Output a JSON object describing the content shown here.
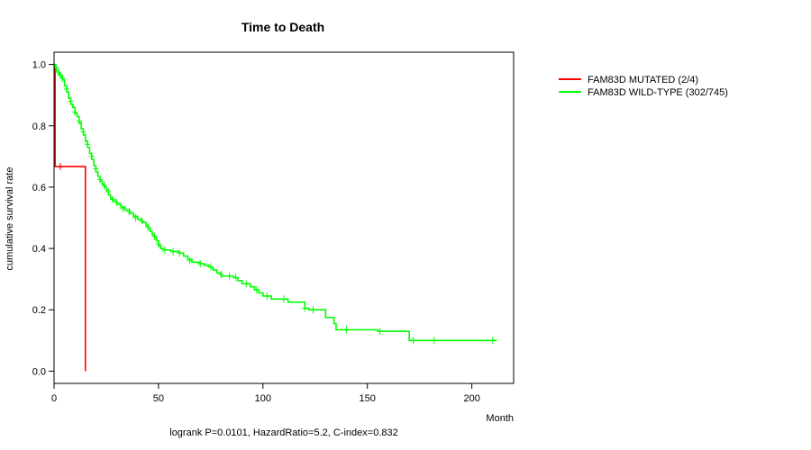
{
  "chart_data": {
    "type": "line",
    "subtype": "kaplan-meier",
    "title": "Time to Death",
    "xlabel": "Month",
    "ylabel": "cumulative survival rate",
    "xlim": [
      0,
      220
    ],
    "ylim": [
      -0.04,
      1.04
    ],
    "xticks": [
      0,
      50,
      100,
      150,
      200
    ],
    "xtick_labels": [
      "0",
      "50",
      "100",
      "150",
      "200"
    ],
    "yticks": [
      0.0,
      0.2,
      0.4,
      0.6,
      0.8,
      1.0
    ],
    "ytick_labels": [
      "0.0",
      "0.2",
      "0.4",
      "0.6",
      "0.8",
      "1.0"
    ],
    "legend_position": "top-right, outside plot",
    "footnote": "logrank P=0.0101, HazardRatio=5.2, C-index=0.832",
    "series": [
      {
        "name": "FAM83D MUTATED (2/4)",
        "color": "#ff0000",
        "steps": [
          [
            0,
            1.0
          ],
          [
            0.5,
            0.667
          ],
          [
            15,
            0.0
          ]
        ],
        "end_x": 15,
        "censored": [
          [
            3,
            0.667
          ]
        ]
      },
      {
        "name": "FAM83D WILD-TYPE (302/745)",
        "color": "#00ff00",
        "steps": [
          [
            0,
            1.0
          ],
          [
            0.5,
            0.99
          ],
          [
            1,
            0.98
          ],
          [
            2,
            0.97
          ],
          [
            3,
            0.96
          ],
          [
            4,
            0.95
          ],
          [
            5,
            0.93
          ],
          [
            6,
            0.91
          ],
          [
            7,
            0.89
          ],
          [
            8,
            0.87
          ],
          [
            9,
            0.86
          ],
          [
            10,
            0.84
          ],
          [
            11,
            0.83
          ],
          [
            12,
            0.81
          ],
          [
            13,
            0.79
          ],
          [
            14,
            0.77
          ],
          [
            15,
            0.75
          ],
          [
            16,
            0.73
          ],
          [
            17,
            0.71
          ],
          [
            18,
            0.69
          ],
          [
            19,
            0.67
          ],
          [
            20,
            0.65
          ],
          [
            21,
            0.635
          ],
          [
            22,
            0.62
          ],
          [
            23,
            0.61
          ],
          [
            24,
            0.6
          ],
          [
            25,
            0.59
          ],
          [
            26,
            0.575
          ],
          [
            27,
            0.565
          ],
          [
            28,
            0.555
          ],
          [
            30,
            0.545
          ],
          [
            32,
            0.535
          ],
          [
            34,
            0.525
          ],
          [
            36,
            0.515
          ],
          [
            38,
            0.505
          ],
          [
            40,
            0.495
          ],
          [
            42,
            0.485
          ],
          [
            44,
            0.475
          ],
          [
            45,
            0.465
          ],
          [
            46,
            0.455
          ],
          [
            47,
            0.445
          ],
          [
            48,
            0.435
          ],
          [
            49,
            0.425
          ],
          [
            50,
            0.41
          ],
          [
            51,
            0.4
          ],
          [
            52,
            0.395
          ],
          [
            56,
            0.39
          ],
          [
            60,
            0.385
          ],
          [
            62,
            0.375
          ],
          [
            64,
            0.365
          ],
          [
            66,
            0.355
          ],
          [
            70,
            0.35
          ],
          [
            72,
            0.345
          ],
          [
            74,
            0.34
          ],
          [
            76,
            0.33
          ],
          [
            78,
            0.32
          ],
          [
            80,
            0.31
          ],
          [
            86,
            0.305
          ],
          [
            88,
            0.295
          ],
          [
            90,
            0.285
          ],
          [
            94,
            0.275
          ],
          [
            96,
            0.265
          ],
          [
            98,
            0.255
          ],
          [
            100,
            0.245
          ],
          [
            104,
            0.235
          ],
          [
            112,
            0.225
          ],
          [
            120,
            0.205
          ],
          [
            122,
            0.2
          ],
          [
            130,
            0.175
          ],
          [
            134,
            0.155
          ],
          [
            135,
            0.135
          ],
          [
            155,
            0.13
          ],
          [
            170,
            0.1
          ]
        ],
        "end_x": 212,
        "censored": [
          [
            1,
            0.99
          ],
          [
            2,
            0.975
          ],
          [
            3,
            0.965
          ],
          [
            4,
            0.955
          ],
          [
            6,
            0.92
          ],
          [
            8,
            0.88
          ],
          [
            10,
            0.845
          ],
          [
            12,
            0.815
          ],
          [
            14,
            0.78
          ],
          [
            16,
            0.74
          ],
          [
            18,
            0.7
          ],
          [
            20,
            0.66
          ],
          [
            22,
            0.625
          ],
          [
            24,
            0.605
          ],
          [
            26,
            0.585
          ],
          [
            28,
            0.56
          ],
          [
            30,
            0.55
          ],
          [
            33,
            0.53
          ],
          [
            36,
            0.52
          ],
          [
            39,
            0.5
          ],
          [
            42,
            0.49
          ],
          [
            45,
            0.47
          ],
          [
            48,
            0.44
          ],
          [
            50,
            0.415
          ],
          [
            53,
            0.395
          ],
          [
            57,
            0.39
          ],
          [
            60,
            0.385
          ],
          [
            65,
            0.36
          ],
          [
            70,
            0.35
          ],
          [
            75,
            0.34
          ],
          [
            80,
            0.315
          ],
          [
            84,
            0.31
          ],
          [
            87,
            0.305
          ],
          [
            92,
            0.285
          ],
          [
            97,
            0.265
          ],
          [
            102,
            0.245
          ],
          [
            110,
            0.235
          ],
          [
            120,
            0.205
          ],
          [
            124,
            0.2
          ],
          [
            140,
            0.135
          ],
          [
            156,
            0.13
          ],
          [
            172,
            0.1
          ],
          [
            182,
            0.1
          ],
          [
            210,
            0.1
          ]
        ]
      }
    ]
  }
}
